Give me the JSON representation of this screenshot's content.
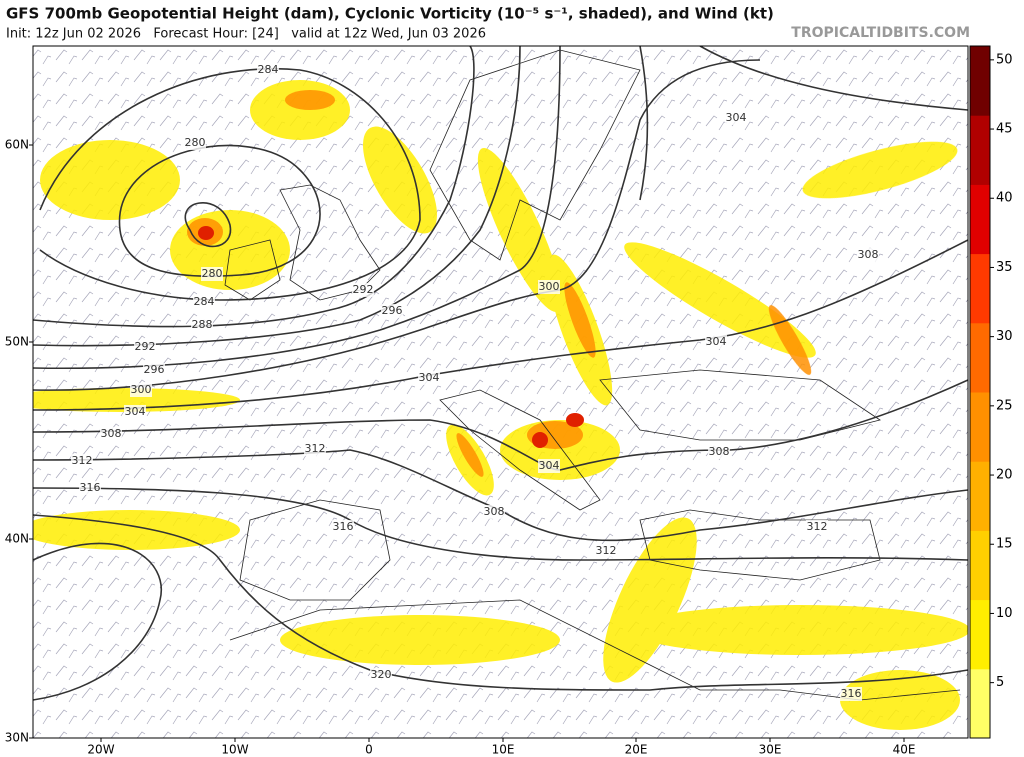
{
  "header": {
    "title": "GFS 700mb Geopotential Height (dam), Cyclonic Vorticity (10⁻⁵ s⁻¹, shaded), and Wind (kt)",
    "subtitle": "Init: 12z Jun 02 2026   Forecast Hour: [24]   valid at 12z Wed, Jun 03 2026",
    "watermark": "TROPICALTIDBITS.COM"
  },
  "map": {
    "lat_labels": [
      "60N",
      "50N",
      "40N",
      "30N"
    ],
    "lon_labels": [
      "20W",
      "10W",
      "0",
      "10E",
      "20E",
      "30E",
      "40E"
    ],
    "contour_labels": [
      284,
      280,
      280,
      284,
      288,
      292,
      296,
      300,
      304,
      308,
      312,
      316,
      316,
      320,
      304,
      300,
      296,
      292,
      304,
      304,
      308,
      312,
      308,
      312,
      312,
      316,
      308,
      304
    ]
  },
  "colorbar": {
    "range": [
      1,
      51
    ],
    "ticks": [
      5,
      10,
      15,
      20,
      25,
      30,
      35,
      40,
      45,
      50
    ],
    "colors": [
      "#ffff66",
      "#ffee00",
      "#ffd000",
      "#ffb000",
      "#ff9000",
      "#ff6a00",
      "#ff3a00",
      "#e00000",
      "#b00000",
      "#700000"
    ]
  }
}
